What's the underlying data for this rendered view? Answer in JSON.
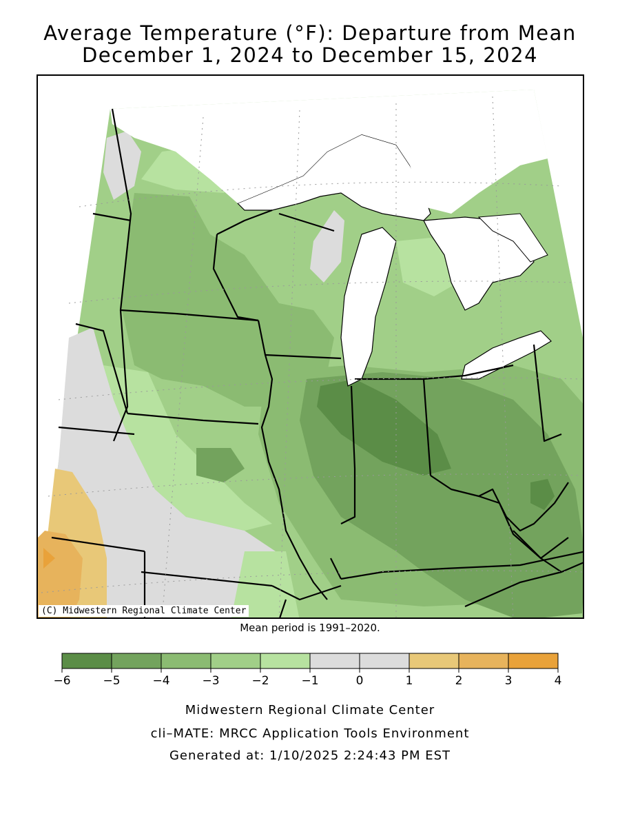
{
  "title": {
    "line1": "Average Temperature (°F): Departure from Mean",
    "line2": "December 1, 2024 to December 15, 2024"
  },
  "map": {
    "credit": "(C) Midwestern Regional Climate Center",
    "mean_period": "Mean period is 1991–2020.",
    "colors": {
      "c_m6_m5": "#5b8d47",
      "c_m5_m4": "#73a35d",
      "c_m4_m3": "#8bbb72",
      "c_m3_m2": "#a1cf88",
      "c_m2_m1": "#b7e2a0",
      "c_m1_0": "#dcdcdc",
      "c_0_1": "#dcdcdc",
      "c_1_2": "#e8c878",
      "c_2_3": "#e7b35c",
      "c_3_4": "#e9a23a",
      "water": "#ffffff",
      "boundary": "#000000"
    }
  },
  "legend": {
    "ticks": [
      "−6",
      "−5",
      "−4",
      "−3",
      "−2",
      "−1",
      "0",
      "1",
      "2",
      "3",
      "4"
    ],
    "colors": [
      "#5b8d47",
      "#73a35d",
      "#8bbb72",
      "#a1cf88",
      "#b7e2a0",
      "#dcdcdc",
      "#dcdcdc",
      "#e8c878",
      "#e7b35c",
      "#e9a23a"
    ]
  },
  "footer": {
    "line1": "Midwestern Regional Climate Center",
    "line2": "cli–MATE: MRCC Application Tools Environment",
    "line3": "Generated at: 1/10/2025 2:24:43 PM EST"
  }
}
